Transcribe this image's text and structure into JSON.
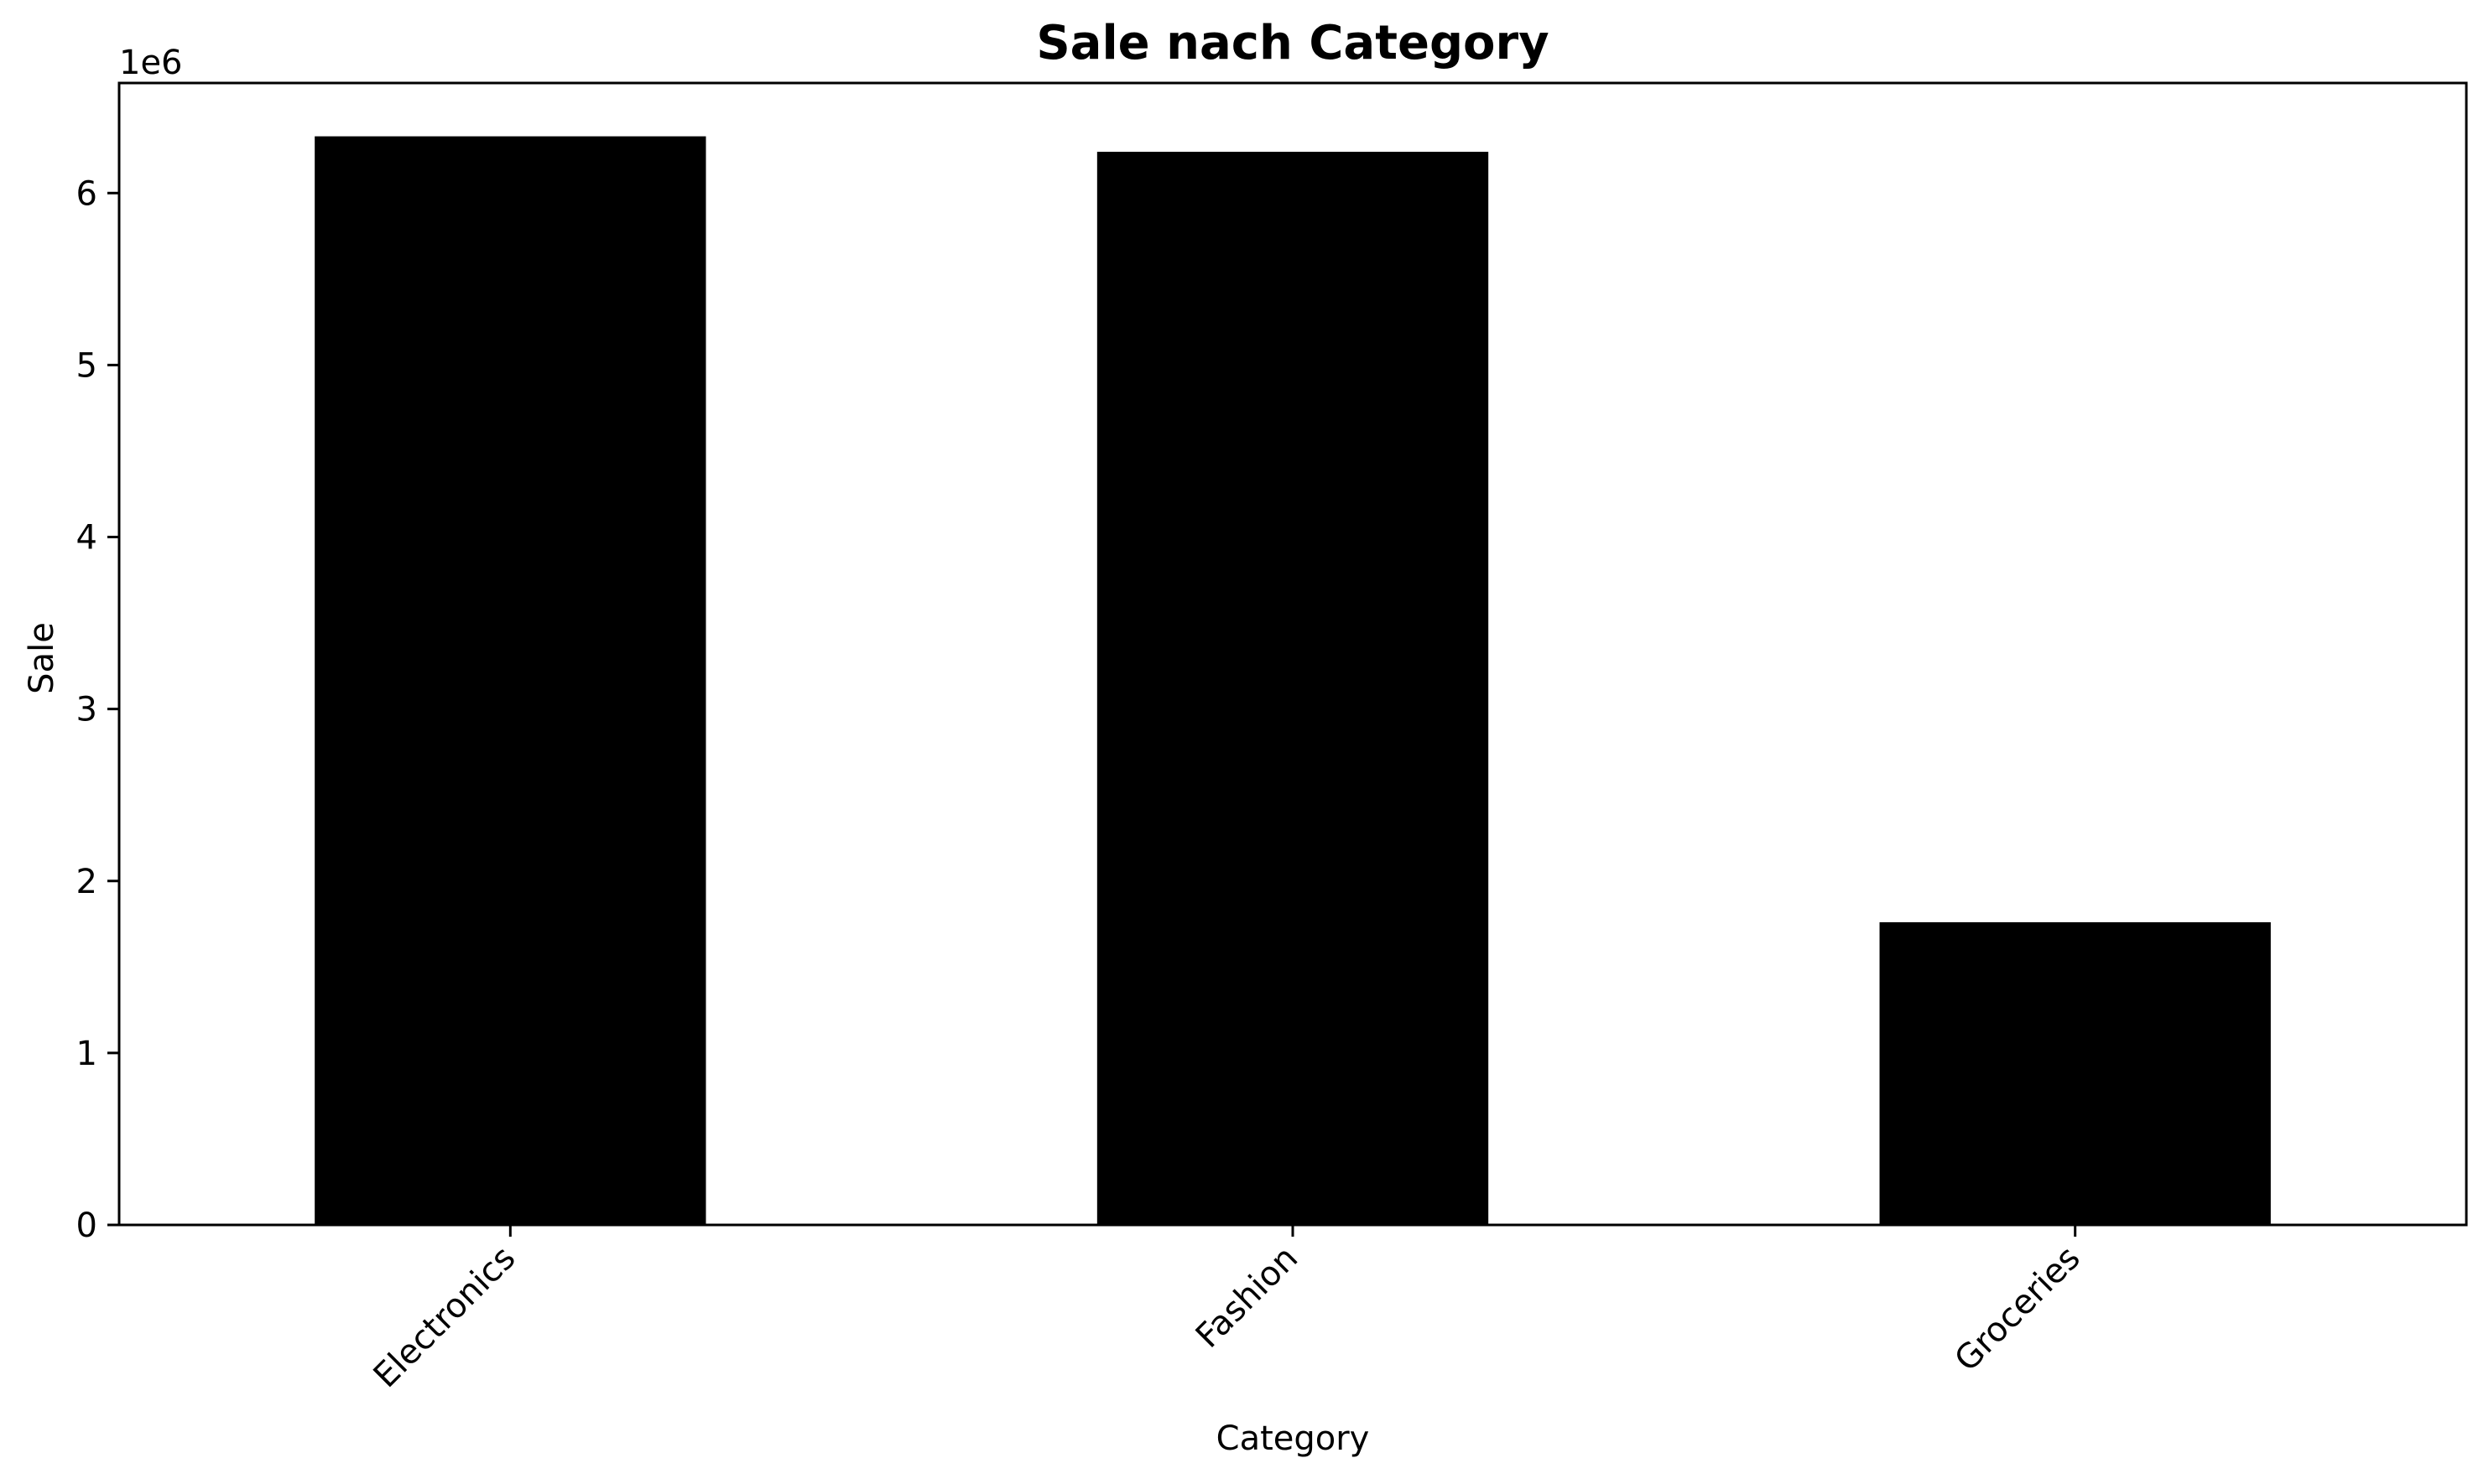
{
  "colors": {
    "bar": "#000000",
    "axis": "#000000",
    "background": "#ffffff"
  },
  "chart_data": {
    "type": "bar",
    "title": "Sale nach Category",
    "xlabel": "Category",
    "ylabel": "Sale",
    "y_offset_label": "1e6",
    "categories": [
      "Electronics",
      "Fashion",
      "Groceries"
    ],
    "values": [
      6330000,
      6240000,
      1760000
    ],
    "ylim": [
      0,
      6640000
    ],
    "yticks": [
      0,
      1000000,
      2000000,
      3000000,
      4000000,
      5000000,
      6000000
    ],
    "ytick_labels": [
      "0",
      "1",
      "2",
      "3",
      "4",
      "5",
      "6"
    ],
    "xtick_rotation_deg": 45,
    "grid": false,
    "legend": "none"
  }
}
